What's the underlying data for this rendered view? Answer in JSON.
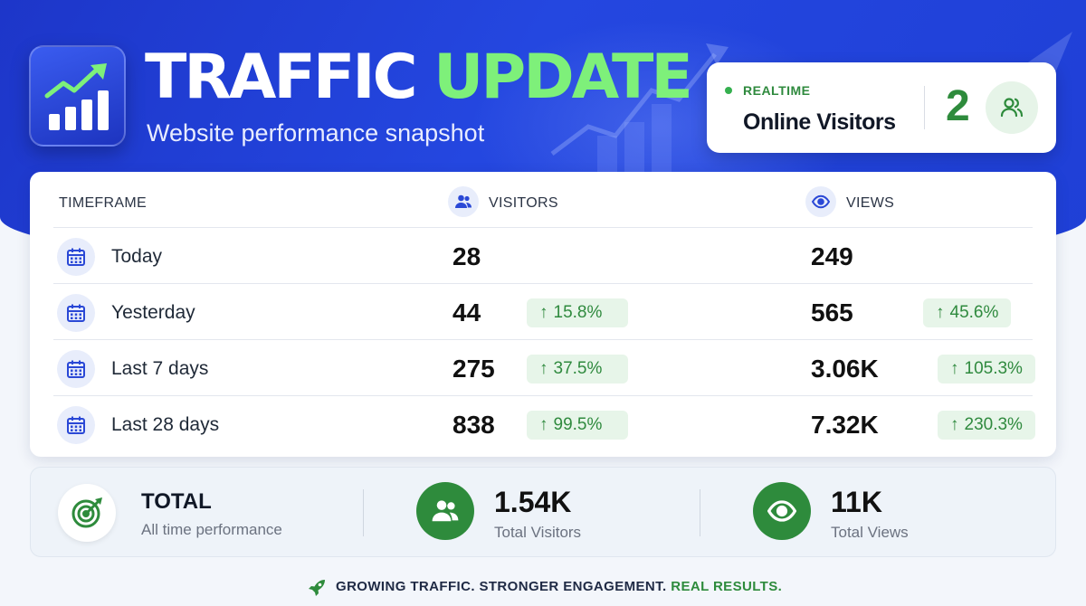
{
  "header": {
    "title_part1": "TRAFFIC",
    "title_part2": "UPDATE",
    "subtitle": "Website performance snapshot",
    "logo_icon": "chart-growth-icon"
  },
  "realtime": {
    "label": "REALTIME",
    "title": "Online Visitors",
    "count": "2",
    "icon": "users-icon"
  },
  "table": {
    "headers": {
      "timeframe": "TIMEFRAME",
      "visitors": "VISITORS",
      "views": "VIEWS"
    },
    "rows": [
      {
        "label": "Today",
        "visitors": "28",
        "visitors_change": "",
        "views": "249",
        "views_change": ""
      },
      {
        "label": "Yesterday",
        "visitors": "44",
        "visitors_change": "15.8%",
        "views": "565",
        "views_change": "45.6%"
      },
      {
        "label": "Last 7 days",
        "visitors": "275",
        "visitors_change": "37.5%",
        "views": "3.06K",
        "views_change": "105.3%"
      },
      {
        "label": "Last 28 days",
        "visitors": "838",
        "visitors_change": "99.5%",
        "views": "7.32K",
        "views_change": "230.3%"
      }
    ],
    "up_arrow": "↑"
  },
  "totals": {
    "title": "TOTAL",
    "subtitle": "All time performance",
    "visitors_value": "1.54K",
    "visitors_label": "Total Visitors",
    "views_value": "11K",
    "views_label": "Total Views"
  },
  "footer": {
    "part1": "GROWING TRAFFIC. STRONGER ENGAGEMENT.",
    "part2": "REAL RESULTS."
  },
  "colors": {
    "brand_blue": "#2447e0",
    "accent_green": "#7ef07a",
    "positive_green": "#2e8b3c",
    "badge_bg": "#e7f5e9"
  }
}
